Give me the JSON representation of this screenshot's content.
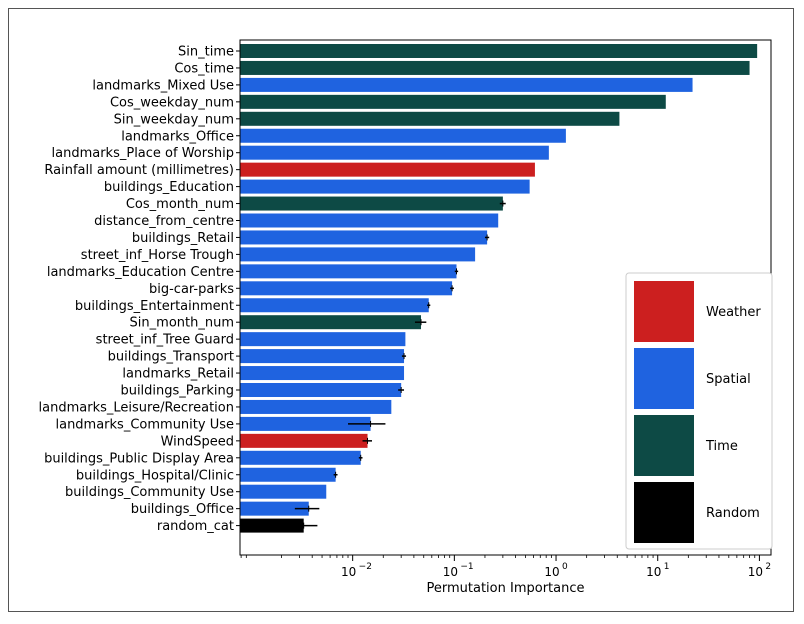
{
  "chart_data": {
    "type": "bar",
    "orientation": "horizontal",
    "xscale": "log",
    "xlabel": "Permutation Importance",
    "xlim": [
      0.00078,
      130
    ],
    "xticks": [
      {
        "value": 0.01,
        "label": "10",
        "exp": "−2"
      },
      {
        "value": 0.1,
        "label": "10",
        "exp": "−1"
      },
      {
        "value": 1,
        "label": "10",
        "exp": "0"
      },
      {
        "value": 10,
        "label": "10",
        "exp": "1"
      },
      {
        "value": 100,
        "label": "10",
        "exp": "2"
      }
    ],
    "colors": {
      "Weather": "#cc1f1f",
      "Spatial": "#1f63e0",
      "Time": "#0d4a45",
      "Random": "#000000"
    },
    "legend": {
      "position": "right",
      "items": [
        "Weather",
        "Spatial",
        "Time",
        "Random"
      ]
    },
    "bars": [
      {
        "label": "Sin_time",
        "value": 95,
        "group": "Time",
        "err": 0
      },
      {
        "label": "Cos_time",
        "value": 80,
        "group": "Time",
        "err": 0
      },
      {
        "label": "landmarks_Mixed Use",
        "value": 22,
        "group": "Spatial",
        "err": 0
      },
      {
        "label": "Cos_weekday_num",
        "value": 12,
        "group": "Time",
        "err": 0
      },
      {
        "label": "Sin_weekday_num",
        "value": 4.2,
        "group": "Time",
        "err": 0
      },
      {
        "label": "landmarks_Office",
        "value": 1.25,
        "group": "Spatial",
        "err": 0
      },
      {
        "label": "landmarks_Place of Worship",
        "value": 0.85,
        "group": "Spatial",
        "err": 0
      },
      {
        "label": "Rainfall amount (millimetres)",
        "value": 0.62,
        "group": "Weather",
        "err": 0
      },
      {
        "label": "buildings_Education",
        "value": 0.55,
        "group": "Spatial",
        "err": 0
      },
      {
        "label": "Cos_month_num",
        "value": 0.3,
        "group": "Time",
        "err": 0.02
      },
      {
        "label": "distance_from_centre",
        "value": 0.27,
        "group": "Spatial",
        "err": 0
      },
      {
        "label": "buildings_Retail",
        "value": 0.21,
        "group": "Spatial",
        "err": 0.01
      },
      {
        "label": "street_inf_Horse Trough",
        "value": 0.16,
        "group": "Spatial",
        "err": 0
      },
      {
        "label": "landmarks_Education Centre",
        "value": 0.105,
        "group": "Spatial",
        "err": 0.004
      },
      {
        "label": "big-car-parks",
        "value": 0.095,
        "group": "Spatial",
        "err": 0.004
      },
      {
        "label": "buildings_Entertainment",
        "value": 0.056,
        "group": "Spatial",
        "err": 0.002
      },
      {
        "label": "Sin_month_num",
        "value": 0.047,
        "group": "Time",
        "err": 0.006
      },
      {
        "label": "street_inf_Tree Guard",
        "value": 0.033,
        "group": "Spatial",
        "err": 0
      },
      {
        "label": "buildings_Transport",
        "value": 0.032,
        "group": "Spatial",
        "err": 0.0015
      },
      {
        "label": "landmarks_Retail",
        "value": 0.032,
        "group": "Spatial",
        "err": 0
      },
      {
        "label": "buildings_Parking",
        "value": 0.03,
        "group": "Spatial",
        "err": 0.002
      },
      {
        "label": "landmarks_Leisure/Recreation",
        "value": 0.024,
        "group": "Spatial",
        "err": 0
      },
      {
        "label": "landmarks_Community Use",
        "value": 0.015,
        "group": "Spatial",
        "err": 0.006
      },
      {
        "label": "WindSpeed",
        "value": 0.014,
        "group": "Weather",
        "err": 0.0015
      },
      {
        "label": "buildings_Public Display Area",
        "value": 0.012,
        "group": "Spatial",
        "err": 0.0005
      },
      {
        "label": "buildings_Hospital/Clinic",
        "value": 0.0068,
        "group": "Spatial",
        "err": 0.0003
      },
      {
        "label": "buildings_Community Use",
        "value": 0.0055,
        "group": "Spatial",
        "err": 0
      },
      {
        "label": "buildings_Office",
        "value": 0.0037,
        "group": "Spatial",
        "err": 0.001
      },
      {
        "label": "random_cat",
        "value": 0.0033,
        "group": "Random",
        "err": 0.0012
      }
    ]
  }
}
